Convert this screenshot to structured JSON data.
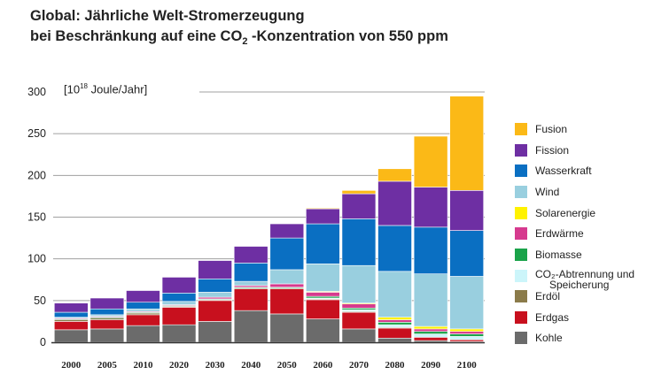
{
  "title": {
    "line1": "Global: Jährliche Welt-Stromerzeugung",
    "line2_pre": "bei Beschränkung auf eine CO",
    "line2_sub": "2",
    "line2_post": " -Konzentration von 550 ppm"
  },
  "unit_label": {
    "pre": "[10",
    "sup": "18",
    "post": " Joule/Jahr]"
  },
  "legend": {
    "fusion": "Fusion",
    "fission": "Fission",
    "wasserkraft": "Wasserkraft",
    "wind": "Wind",
    "solar": "Solarenergie",
    "erdwaerme": "Erdwärme",
    "biomasse": "Biomasse",
    "ccs_line1": "CO₂-Abtrennung und",
    "ccs_line2": "Speicherung",
    "erdoel": "Erdöl",
    "erdgas": "Erdgas",
    "kohle": "Kohle"
  },
  "chart_data": {
    "type": "bar",
    "stacked": true,
    "title": "Global: Jährliche Welt-Stromerzeugung bei Beschränkung auf eine CO2-Konzentration von 550 ppm",
    "ylabel": "[10^18 Joule/Jahr]",
    "xlabel": "",
    "ylim": [
      0,
      300
    ],
    "yticks": [
      0,
      50,
      100,
      150,
      200,
      250,
      300
    ],
    "categories": [
      "2000",
      "2005",
      "2010",
      "2020",
      "2030",
      "2040",
      "2050",
      "2060",
      "2070",
      "2080",
      "2090",
      "2100"
    ],
    "series": [
      {
        "name": "Kohle",
        "color": "#6b6b6b",
        "values": [
          15,
          16,
          20,
          21,
          25,
          38,
          34,
          28,
          16,
          5,
          2,
          1
        ]
      },
      {
        "name": "Erdgas",
        "color": "#c8101e",
        "values": [
          10,
          11,
          13,
          21,
          25,
          26,
          30,
          23,
          20,
          12,
          4,
          2
        ]
      },
      {
        "name": "Erdöl",
        "color": "#8b7b4a",
        "values": [
          2,
          2,
          2,
          1,
          1,
          1,
          1,
          1,
          1,
          1,
          0,
          0
        ]
      },
      {
        "name": "CO₂-Abtrennung und Speicherung",
        "color": "#ccf5fa",
        "values": [
          0,
          0,
          0,
          0,
          0,
          0,
          0,
          1,
          2,
          3,
          4,
          4
        ]
      },
      {
        "name": "Biomasse",
        "color": "#1aa34a",
        "values": [
          1,
          1,
          1,
          1,
          1,
          1,
          1,
          2,
          2,
          3,
          3,
          3
        ]
      },
      {
        "name": "Erdwärme",
        "color": "#d63a8e",
        "values": [
          1,
          1,
          1,
          1,
          2,
          2,
          4,
          5,
          5,
          3,
          3,
          3
        ]
      },
      {
        "name": "Solarenergie",
        "color": "#fff200",
        "values": [
          0,
          0,
          0,
          0,
          0,
          0,
          0,
          1,
          1,
          3,
          3,
          3
        ]
      },
      {
        "name": "Wind",
        "color": "#99cfdf",
        "values": [
          1,
          2,
          3,
          4,
          6,
          5,
          17,
          33,
          45,
          55,
          63,
          63
        ]
      },
      {
        "name": "Wasserkraft",
        "color": "#0a6fc2",
        "values": [
          6,
          7,
          8,
          10,
          16,
          22,
          38,
          48,
          56,
          55,
          56,
          55
        ]
      },
      {
        "name": "Fission",
        "color": "#6e2fa3",
        "values": [
          11,
          13,
          14,
          19,
          22,
          20,
          17,
          18,
          30,
          53,
          48,
          48
        ]
      },
      {
        "name": "Fusion",
        "color": "#fbb917",
        "values": [
          0,
          0,
          0,
          0,
          0,
          0,
          0,
          1,
          4,
          15,
          61,
          113
        ]
      }
    ]
  }
}
